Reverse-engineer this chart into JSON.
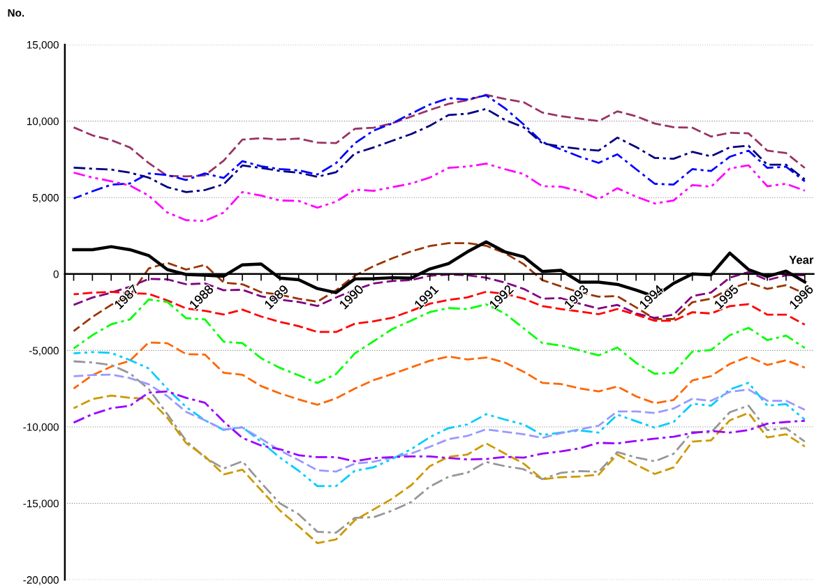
{
  "chart_data": {
    "type": "line",
    "ylabel": "No.",
    "xlabel": "Year",
    "categories": [
      null,
      null,
      null,
      "1987",
      null,
      null,
      null,
      "1988",
      null,
      null,
      null,
      "1989",
      null,
      null,
      null,
      "1990",
      null,
      null,
      null,
      "1991",
      null,
      null,
      null,
      "1992",
      null,
      null,
      null,
      "1993",
      null,
      null,
      null,
      "1994",
      null,
      null,
      null,
      "1995",
      null,
      null,
      null,
      "1996"
    ],
    "ylim": [
      -20000,
      15000
    ],
    "yticks": [
      {
        "value": -20000,
        "label": "-20,000"
      },
      {
        "value": -15000,
        "label": "-15,000"
      },
      {
        "value": -10000,
        "label": "-10,000"
      },
      {
        "value": -5000,
        "label": "-5,000"
      },
      0,
      {
        "value": 5000,
        "label": "5,000"
      },
      {
        "value": 10000,
        "label": "10,000"
      },
      {
        "value": 15000,
        "label": "15,000"
      }
    ],
    "grid": "y",
    "marker": "none",
    "series": [
      {
        "color": "#993366",
        "line_style": "dashed",
        "values": [
          9590,
          9070,
          8760,
          8280,
          7260,
          6420,
          6390,
          6450,
          7410,
          8790,
          8880,
          8790,
          8860,
          8600,
          8560,
          9500,
          9570,
          9860,
          10300,
          10730,
          11130,
          11370,
          11720,
          11450,
          11240,
          10560,
          10320,
          10160,
          10000,
          10640,
          10320,
          9840,
          9600,
          9570,
          8990,
          9240,
          9200,
          8070,
          7910,
          6940
        ]
      },
      {
        "color": "#0000ff",
        "line_style": "dashdot",
        "values": [
          4940,
          5410,
          5840,
          5920,
          6580,
          6470,
          6150,
          6580,
          6280,
          7380,
          7050,
          6860,
          6780,
          6510,
          7260,
          8560,
          9380,
          9860,
          10490,
          11090,
          11500,
          11420,
          11690,
          10850,
          9790,
          8630,
          8150,
          7670,
          7270,
          7830,
          6860,
          5900,
          5850,
          6860,
          6740,
          7670,
          8070,
          6940,
          7020,
          6060
        ]
      },
      {
        "color": "#000080",
        "line_style": "dashdot",
        "values": [
          6960,
          6890,
          6830,
          6630,
          6310,
          5680,
          5360,
          5490,
          5870,
          7100,
          6940,
          6740,
          6630,
          6360,
          6660,
          7890,
          8280,
          8720,
          9150,
          9700,
          10400,
          10480,
          10800,
          10080,
          9600,
          8550,
          8340,
          8180,
          8070,
          8920,
          8310,
          7590,
          7540,
          7990,
          7700,
          8280,
          8390,
          7150,
          7150,
          6190
        ]
      },
      {
        "color": "#ff00ff",
        "line_style": "dashdotdot",
        "values": [
          6630,
          6310,
          6070,
          5790,
          5130,
          4020,
          3520,
          3470,
          4020,
          5360,
          5130,
          4810,
          4780,
          4340,
          4730,
          5520,
          5440,
          5680,
          5920,
          6310,
          6940,
          7030,
          7220,
          6860,
          6540,
          5740,
          5710,
          5420,
          4900,
          5610,
          5060,
          4610,
          4810,
          5820,
          5710,
          6900,
          7110,
          5740,
          5900,
          5450
        ]
      },
      {
        "color": "#000000",
        "line_style": "solid",
        "values": [
          1590,
          1590,
          1790,
          1590,
          1210,
          290,
          -30,
          -80,
          -140,
          600,
          650,
          -270,
          -370,
          -950,
          -1220,
          -320,
          -300,
          -240,
          -270,
          330,
          680,
          1450,
          2100,
          1450,
          1130,
          160,
          240,
          -530,
          -530,
          -680,
          -1050,
          -1480,
          -610,
          0,
          -50,
          1370,
          290,
          -160,
          190,
          -520
        ]
      },
      {
        "color": "#993300",
        "line_style": "dashed",
        "values": [
          -3730,
          -2810,
          -2020,
          -1410,
          360,
          730,
          290,
          600,
          -560,
          -670,
          -1190,
          -1350,
          -1620,
          -1810,
          -1060,
          -110,
          520,
          1030,
          1480,
          1830,
          2020,
          2020,
          1850,
          1370,
          650,
          -400,
          -810,
          -1210,
          -1480,
          -1450,
          -2180,
          -2940,
          -2940,
          -1850,
          -1610,
          -970,
          -560,
          -970,
          -730,
          -1290
        ]
      },
      {
        "color": "#800080",
        "line_style": "dashed",
        "values": [
          -2020,
          -1540,
          -1220,
          -830,
          -320,
          -350,
          -670,
          -620,
          -1060,
          -1030,
          -1460,
          -1670,
          -1830,
          -2090,
          -1540,
          -1030,
          -620,
          -460,
          -400,
          -110,
          -30,
          -80,
          -240,
          -560,
          -970,
          -1610,
          -1580,
          -1940,
          -2260,
          -2020,
          -2580,
          -2870,
          -2660,
          -1450,
          -1210,
          -240,
          130,
          -400,
          -80,
          -80
        ]
      },
      {
        "color": "#ff0000",
        "line_style": "dashed",
        "values": [
          -1330,
          -1220,
          -1170,
          -1250,
          -1300,
          -1730,
          -2250,
          -2410,
          -2650,
          -2330,
          -2780,
          -3130,
          -3410,
          -3790,
          -3790,
          -3250,
          -3090,
          -2860,
          -2410,
          -1940,
          -1690,
          -1530,
          -1160,
          -1290,
          -1610,
          -2100,
          -2290,
          -2450,
          -2630,
          -2290,
          -2660,
          -3060,
          -3060,
          -2500,
          -2580,
          -2100,
          -1970,
          -2660,
          -2660,
          -3310
        ]
      },
      {
        "color": "#00ff00",
        "line_style": "dashdot",
        "values": [
          -4870,
          -4000,
          -3290,
          -2970,
          -1670,
          -1830,
          -2890,
          -2970,
          -4430,
          -4520,
          -5510,
          -6140,
          -6620,
          -7130,
          -6540,
          -5190,
          -4400,
          -3600,
          -3050,
          -2490,
          -2230,
          -2290,
          -1980,
          -2580,
          -3550,
          -4520,
          -4680,
          -5000,
          -5320,
          -4810,
          -5810,
          -6530,
          -6450,
          -5080,
          -4970,
          -4000,
          -3520,
          -4320,
          -4030,
          -4840
        ]
      },
      {
        "color": "#ff6600",
        "line_style": "dashed",
        "values": [
          -7490,
          -6620,
          -6060,
          -5670,
          -4480,
          -4530,
          -5240,
          -5270,
          -6460,
          -6590,
          -7330,
          -7810,
          -8200,
          -8550,
          -8130,
          -7490,
          -6940,
          -6540,
          -6110,
          -5670,
          -5400,
          -5590,
          -5460,
          -5790,
          -6390,
          -7120,
          -7200,
          -7480,
          -7680,
          -7360,
          -8000,
          -8450,
          -8240,
          -6960,
          -6680,
          -5880,
          -5400,
          -5950,
          -5640,
          -6120
        ]
      },
      {
        "color": "#00ccff",
        "line_style": "dashdotdot",
        "values": [
          -5190,
          -5110,
          -5160,
          -5630,
          -6180,
          -7520,
          -8700,
          -9570,
          -10200,
          -10010,
          -10980,
          -12010,
          -12870,
          -13870,
          -13870,
          -12870,
          -12640,
          -12090,
          -11460,
          -10670,
          -10080,
          -9840,
          -9170,
          -9520,
          -9840,
          -10530,
          -10370,
          -10240,
          -10370,
          -9200,
          -9630,
          -10050,
          -9680,
          -8480,
          -8610,
          -7550,
          -7120,
          -8610,
          -8510,
          -9520
        ]
      },
      {
        "color": "#969696",
        "line_style": "dashdot",
        "values": [
          -5710,
          -5790,
          -5950,
          -6500,
          -7520,
          -9170,
          -10910,
          -12010,
          -12720,
          -12250,
          -13660,
          -15000,
          -15710,
          -16860,
          -16920,
          -15950,
          -15910,
          -15470,
          -14920,
          -13900,
          -13260,
          -13000,
          -12290,
          -12570,
          -12770,
          -13420,
          -13000,
          -12890,
          -12940,
          -11650,
          -12000,
          -12250,
          -11760,
          -10320,
          -10370,
          -9040,
          -8610,
          -10210,
          -10080,
          -10960
        ]
      },
      {
        "color": "#9999ff",
        "line_style": "dashed",
        "values": [
          -6690,
          -6610,
          -6580,
          -6810,
          -7210,
          -7990,
          -9020,
          -9570,
          -10170,
          -10040,
          -10780,
          -11540,
          -12170,
          -12840,
          -12920,
          -12400,
          -12280,
          -12010,
          -11740,
          -11300,
          -10800,
          -10590,
          -10160,
          -10320,
          -10480,
          -10720,
          -10400,
          -10160,
          -9920,
          -8990,
          -8990,
          -9090,
          -8800,
          -8160,
          -8290,
          -7710,
          -7550,
          -8290,
          -8290,
          -8880
        ]
      },
      {
        "color": "#cc9900",
        "line_style": "dashed",
        "values": [
          -8780,
          -8180,
          -7950,
          -8100,
          -8160,
          -9410,
          -11060,
          -11930,
          -13110,
          -12800,
          -14140,
          -15470,
          -16500,
          -17600,
          -17360,
          -16100,
          -15400,
          -14690,
          -13820,
          -12560,
          -11960,
          -11810,
          -11080,
          -11740,
          -12400,
          -13420,
          -13290,
          -13240,
          -13130,
          -11810,
          -12480,
          -13080,
          -12650,
          -10960,
          -10880,
          -9570,
          -9090,
          -10690,
          -10480,
          -11280
        ]
      },
      {
        "color": "#9900ff",
        "line_style": "dashdot",
        "values": [
          -9720,
          -9170,
          -8780,
          -8620,
          -7760,
          -7680,
          -8100,
          -8420,
          -9650,
          -10720,
          -11220,
          -11460,
          -11850,
          -11980,
          -11980,
          -12250,
          -12040,
          -11980,
          -11930,
          -11930,
          -12040,
          -12130,
          -12100,
          -11960,
          -12010,
          -11750,
          -11600,
          -11400,
          -11040,
          -11080,
          -10920,
          -10770,
          -10640,
          -10400,
          -10270,
          -10370,
          -10210,
          -9790,
          -9680,
          -9600
        ]
      }
    ]
  }
}
